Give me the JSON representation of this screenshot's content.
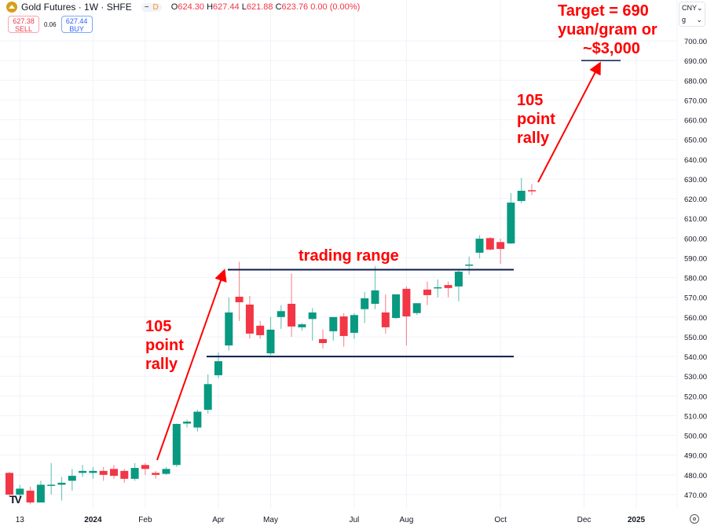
{
  "header": {
    "symbol": "Gold Futures · 1W · SHFE",
    "pill_dash": "−",
    "pill_d": "D",
    "ohlc": {
      "o_label": "O",
      "o": "624.30",
      "h_label": "H",
      "h": "627.44",
      "l_label": "L",
      "l": "621.88",
      "c_label": "C",
      "c": "623.76",
      "change": "0.00 (0.00%)"
    }
  },
  "trade": {
    "sell_price": "627.38",
    "sell_label": "SELL",
    "spread": "0.06",
    "buy_price": "627.44",
    "buy_label": "BUY"
  },
  "units": {
    "currency": "CNY",
    "weight": "g"
  },
  "colors": {
    "up": "#089981",
    "down": "#f23645",
    "level_line": "#0d1b4c",
    "annotation": "#ff0000"
  },
  "annotations": {
    "rally1": [
      "105",
      "point",
      "rally"
    ],
    "rally2": [
      "105",
      "point",
      "rally"
    ],
    "range": "trading range",
    "target": [
      "Target = 690",
      "yuan/gram or",
      "~$3,000"
    ]
  },
  "chart_data": {
    "type": "candlestick",
    "title": "Gold Futures · 1W · SHFE",
    "ylim": [
      465,
      705
    ],
    "yticks": [
      470,
      480,
      490,
      500,
      510,
      520,
      530,
      540,
      550,
      560,
      570,
      580,
      590,
      600,
      610,
      620,
      630,
      640,
      650,
      660,
      670,
      680,
      690,
      700
    ],
    "ytick_labels": [
      "470.00",
      "480.00",
      "490.00",
      "500.00",
      "510.00",
      "520.00",
      "530.00",
      "540.00",
      "550.00",
      "560.00",
      "570.00",
      "580.00",
      "590.00",
      "600.00",
      "610.00",
      "620.00",
      "630.00",
      "640.00",
      "650.00",
      "660.00",
      "670.00",
      "680.00",
      "690.00",
      "700.00"
    ],
    "xlim_weeks": [
      -0.9,
      64.5
    ],
    "xticks": [
      {
        "week": 1,
        "label": "13",
        "bold": false
      },
      {
        "week": 8,
        "label": "2024",
        "bold": true
      },
      {
        "week": 13,
        "label": "Feb",
        "bold": false
      },
      {
        "week": 20,
        "label": "Apr",
        "bold": false
      },
      {
        "week": 25,
        "label": "May",
        "bold": false
      },
      {
        "week": 33,
        "label": "Jul",
        "bold": false
      },
      {
        "week": 38,
        "label": "Aug",
        "bold": false
      },
      {
        "week": 47,
        "label": "Oct",
        "bold": false
      },
      {
        "week": 55,
        "label": "Dec",
        "bold": false
      },
      {
        "week": 60,
        "label": "2025",
        "bold": true
      }
    ],
    "ohlc": [
      [
        481,
        481.5,
        469,
        470
      ],
      [
        470,
        475,
        468,
        473
      ],
      [
        472,
        474,
        465,
        466
      ],
      [
        466,
        477,
        466,
        475
      ],
      [
        475,
        486,
        470,
        475
      ],
      [
        475,
        479,
        467,
        476
      ],
      [
        477,
        483,
        472,
        479.5
      ],
      [
        481,
        485,
        479,
        482
      ],
      [
        481,
        484,
        478,
        482
      ],
      [
        482,
        484,
        477,
        480
      ],
      [
        483,
        485,
        478,
        479.5
      ],
      [
        482,
        483,
        476,
        478
      ],
      [
        478,
        486,
        477,
        483.5
      ],
      [
        485,
        486,
        480,
        483
      ],
      [
        481,
        482,
        478,
        480
      ],
      [
        480.5,
        484,
        480,
        483
      ],
      [
        485,
        506,
        484,
        505.8
      ],
      [
        506,
        508,
        504,
        507
      ],
      [
        504,
        513,
        502,
        512
      ],
      [
        513,
        531,
        511,
        526
      ],
      [
        530.5,
        542,
        529,
        537.6
      ],
      [
        545.6,
        570,
        543,
        562.3
      ],
      [
        570.3,
        588,
        558,
        567.5
      ],
      [
        566.3,
        570.7,
        549,
        551.6
      ],
      [
        555.6,
        558,
        549,
        550.8
      ],
      [
        541.6,
        560,
        540.6,
        553.6
      ],
      [
        560,
        566,
        554,
        563
      ],
      [
        566.7,
        582,
        550,
        555.2
      ],
      [
        554.8,
        557,
        553,
        556.3
      ],
      [
        559,
        564.5,
        548,
        562.3
      ],
      [
        548.8,
        553.6,
        544,
        546.8
      ],
      [
        552.8,
        560,
        548,
        560
      ],
      [
        560.3,
        562,
        545,
        550.4
      ],
      [
        552,
        562,
        549,
        561
      ],
      [
        564,
        572.7,
        557,
        569.5
      ],
      [
        566.7,
        585.8,
        564,
        573.5
      ],
      [
        562.3,
        571.5,
        551.6,
        554.8
      ],
      [
        559.5,
        571.5,
        559,
        571.5
      ],
      [
        574.3,
        575.5,
        545.6,
        560.3
      ],
      [
        562,
        567,
        561,
        567
      ],
      [
        573.9,
        578,
        566,
        571.1
      ],
      [
        575,
        579,
        570,
        575.1
      ],
      [
        576.2,
        578,
        570,
        574.7
      ],
      [
        575.5,
        584,
        568,
        583
      ],
      [
        586,
        590.6,
        581.5,
        586.6
      ],
      [
        592.6,
        601.5,
        589.7,
        599.7
      ],
      [
        600,
        600.5,
        593.8,
        594.2
      ],
      [
        598,
        599.7,
        587,
        594.5
      ],
      [
        597.3,
        622.8,
        597,
        618
      ],
      [
        618.8,
        630.5,
        617.6,
        624
      ],
      [
        624.3,
        627.44,
        621.88,
        623.76
      ]
    ],
    "levels": [
      {
        "name": "range-top",
        "price": 584
      },
      {
        "name": "range-bottom",
        "price": 540
      },
      {
        "name": "target",
        "price": 690
      }
    ]
  }
}
